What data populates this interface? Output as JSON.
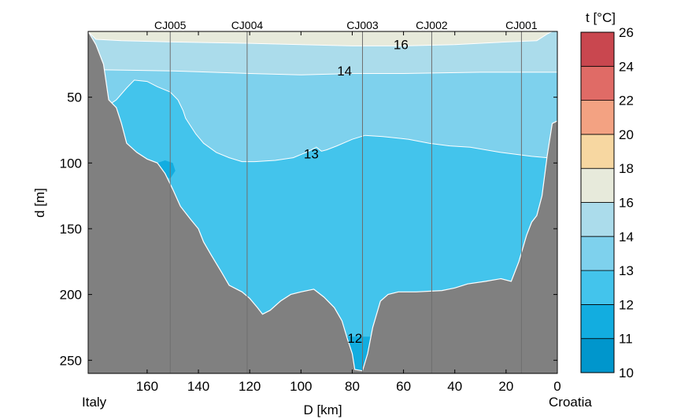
{
  "chart_data": {
    "type": "heatmap",
    "title": "",
    "xlabel": "D [km]",
    "ylabel": "d [m]",
    "xlim": [
      0,
      183
    ],
    "ylim": [
      0,
      260
    ],
    "x_reversed": true,
    "y_reversed": true,
    "x_ticks": [
      160,
      140,
      120,
      100,
      80,
      60,
      40,
      20,
      0
    ],
    "y_ticks": [
      50,
      100,
      150,
      200,
      250
    ],
    "left_label": "Italy",
    "right_label": "Croatia",
    "stations": [
      {
        "name": "CJ005",
        "x": 151
      },
      {
        "name": "CJ004",
        "x": 121
      },
      {
        "name": "CJ003",
        "x": 76
      },
      {
        "name": "CJ002",
        "x": 49
      },
      {
        "name": "CJ001",
        "x": 14
      }
    ],
    "contour_labels": [
      {
        "text": "16",
        "x": 61,
        "y": 10
      },
      {
        "text": "14",
        "x": 83,
        "y": 30
      },
      {
        "text": "13",
        "x": 96,
        "y": 93
      },
      {
        "text": "12",
        "x": 79,
        "y": 233
      }
    ],
    "colorbar": {
      "title": "t [°C]",
      "ticks": [
        10,
        11,
        12,
        13,
        14,
        16,
        18,
        20,
        22,
        24,
        26
      ],
      "colors": [
        "#0096cc",
        "#12ade0",
        "#43c4ec",
        "#7ed1ed",
        "#abdceb",
        "#e7eadb",
        "#f7d7a1",
        "#f3a282",
        "#e06b66",
        "#c9474f",
        "#ad3645"
      ]
    },
    "temperature_bands": [
      {
        "range": "16-18",
        "color": "#e7eadb"
      },
      {
        "range": "14-16",
        "color": "#abdceb"
      },
      {
        "range": "13-14",
        "color": "#7ed1ed"
      },
      {
        "range": "12-13",
        "color": "#43c4ec"
      },
      {
        "range": "11-12",
        "color": "#12ade0"
      }
    ],
    "seabed_color": "#808080",
    "seabed_profile": [
      [
        183,
        0
      ],
      [
        180,
        10
      ],
      [
        177,
        25
      ],
      [
        175,
        52
      ],
      [
        172,
        58
      ],
      [
        170,
        70
      ],
      [
        168,
        85
      ],
      [
        164,
        92
      ],
      [
        160,
        97
      ],
      [
        156,
        100
      ],
      [
        153,
        108
      ],
      [
        150,
        120
      ],
      [
        147,
        133
      ],
      [
        143,
        143
      ],
      [
        140,
        150
      ],
      [
        138,
        160
      ],
      [
        135,
        170
      ],
      [
        131,
        183
      ],
      [
        128,
        193
      ],
      [
        123,
        198
      ],
      [
        120,
        203
      ],
      [
        117,
        210
      ],
      [
        115,
        215
      ],
      [
        112,
        212
      ],
      [
        108,
        205
      ],
      [
        104,
        200
      ],
      [
        100,
        198
      ],
      [
        95,
        196
      ],
      [
        91,
        202
      ],
      [
        87,
        210
      ],
      [
        84,
        220
      ],
      [
        82,
        233
      ],
      [
        80,
        245
      ],
      [
        79,
        257
      ],
      [
        76,
        258
      ],
      [
        74,
        245
      ],
      [
        72,
        225
      ],
      [
        69,
        205
      ],
      [
        66,
        200
      ],
      [
        62,
        198
      ],
      [
        55,
        198
      ],
      [
        45,
        197
      ],
      [
        40,
        195
      ],
      [
        35,
        192
      ],
      [
        28,
        190
      ],
      [
        22,
        188
      ],
      [
        18,
        190
      ],
      [
        15,
        175
      ],
      [
        12,
        155
      ],
      [
        10,
        145
      ],
      [
        8,
        140
      ],
      [
        6,
        125
      ],
      [
        4,
        95
      ],
      [
        2,
        70
      ],
      [
        0,
        68
      ]
    ]
  }
}
